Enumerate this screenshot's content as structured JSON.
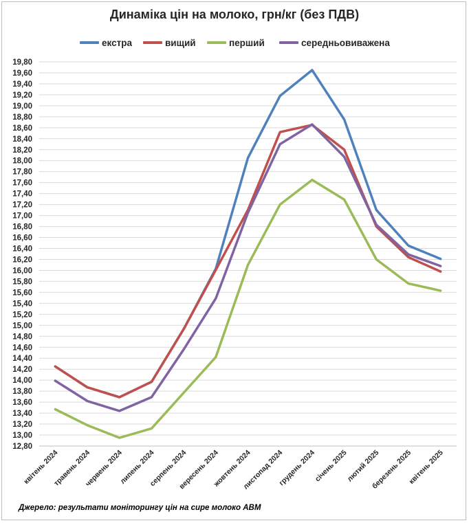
{
  "chart_data": {
    "type": "line",
    "title": "Динаміка цін на молоко, грн/кг (без ПДВ)",
    "xlabel": "",
    "ylabel": "",
    "ylim": [
      12.8,
      19.8
    ],
    "ystep": 0.2,
    "grid": true,
    "legend_position": "top",
    "categories": [
      "квітень 2024",
      "травень 2024",
      "червень 2024",
      "липень 2024",
      "серпень 2024",
      "вересень 2024",
      "жовтень 2024",
      "листопад 2024",
      "грудень 2024",
      "січень 2025",
      "лютий 2025",
      "березень 2025",
      "квітень 2025"
    ],
    "series": [
      {
        "name": "екстра",
        "color": "#4f81bd",
        "values": [
          14.25,
          13.87,
          13.69,
          13.97,
          14.93,
          16.03,
          18.05,
          19.18,
          19.65,
          18.75,
          17.1,
          16.45,
          16.21
        ]
      },
      {
        "name": "вищий",
        "color": "#c0504d",
        "values": [
          14.25,
          13.87,
          13.69,
          13.97,
          14.93,
          16.01,
          17.1,
          18.52,
          18.65,
          18.2,
          16.8,
          16.24,
          15.98
        ]
      },
      {
        "name": "перший",
        "color": "#9bbb59",
        "values": [
          13.47,
          13.18,
          12.95,
          13.12,
          13.77,
          14.42,
          16.1,
          17.2,
          17.65,
          17.29,
          16.2,
          15.76,
          15.63
        ]
      },
      {
        "name": "середньовиважена",
        "color": "#8064a2",
        "values": [
          13.99,
          13.62,
          13.44,
          13.69,
          14.56,
          15.49,
          17.05,
          18.3,
          18.66,
          18.07,
          16.83,
          16.29,
          16.08
        ]
      }
    ]
  },
  "source_note": "Джерело: результати моніторингу цін на сире молоко АВМ"
}
